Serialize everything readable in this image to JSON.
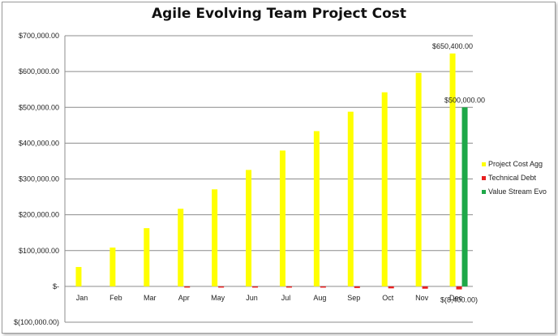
{
  "chart_data": {
    "type": "bar",
    "title": "Agile Evolving Team Project Cost",
    "categories": [
      "Jan",
      "Feb",
      "Mar",
      "Apr",
      "May",
      "Jun",
      "Jul",
      "Aug",
      "Sep",
      "Oct",
      "Nov",
      "Dec"
    ],
    "series": [
      {
        "name": "Project Cost Agg",
        "color": "#ffff00",
        "values": [
          54200,
          108400,
          162600,
          216800,
          271000,
          325200,
          379400,
          433600,
          487800,
          542000,
          596200,
          650400
        ]
      },
      {
        "name": "Technical Debt",
        "color": "#e82020",
        "values": [
          0,
          0,
          0,
          -1000,
          -1500,
          -2500,
          -3000,
          -3500,
          -4500,
          -5500,
          -6500,
          -8400
        ]
      },
      {
        "name": "Value Stream Evo",
        "color": "#1ea848",
        "values": [
          0,
          0,
          0,
          0,
          0,
          0,
          0,
          0,
          0,
          0,
          0,
          500000
        ]
      }
    ],
    "ylim": [
      -100000,
      700000
    ],
    "yticks": [
      {
        "value": 700000,
        "label": "$700,000.00"
      },
      {
        "value": 600000,
        "label": "$600,000.00"
      },
      {
        "value": 500000,
        "label": "$500,000.00"
      },
      {
        "value": 400000,
        "label": "$400,000.00"
      },
      {
        "value": 300000,
        "label": "$300,000.00"
      },
      {
        "value": 200000,
        "label": "$200,000.00"
      },
      {
        "value": 100000,
        "label": "$100,000.00"
      },
      {
        "value": 0,
        "label": "$-"
      },
      {
        "value": -100000,
        "label": "$(100,000.00)"
      }
    ],
    "data_labels": [
      {
        "series": 0,
        "index": 11,
        "text": "$650,400.00"
      },
      {
        "series": 2,
        "index": 11,
        "text": "$500,000.00"
      },
      {
        "series": 1,
        "index": 11,
        "text": "$(8,400.00)"
      }
    ],
    "grid": true,
    "legend_position": "right"
  }
}
